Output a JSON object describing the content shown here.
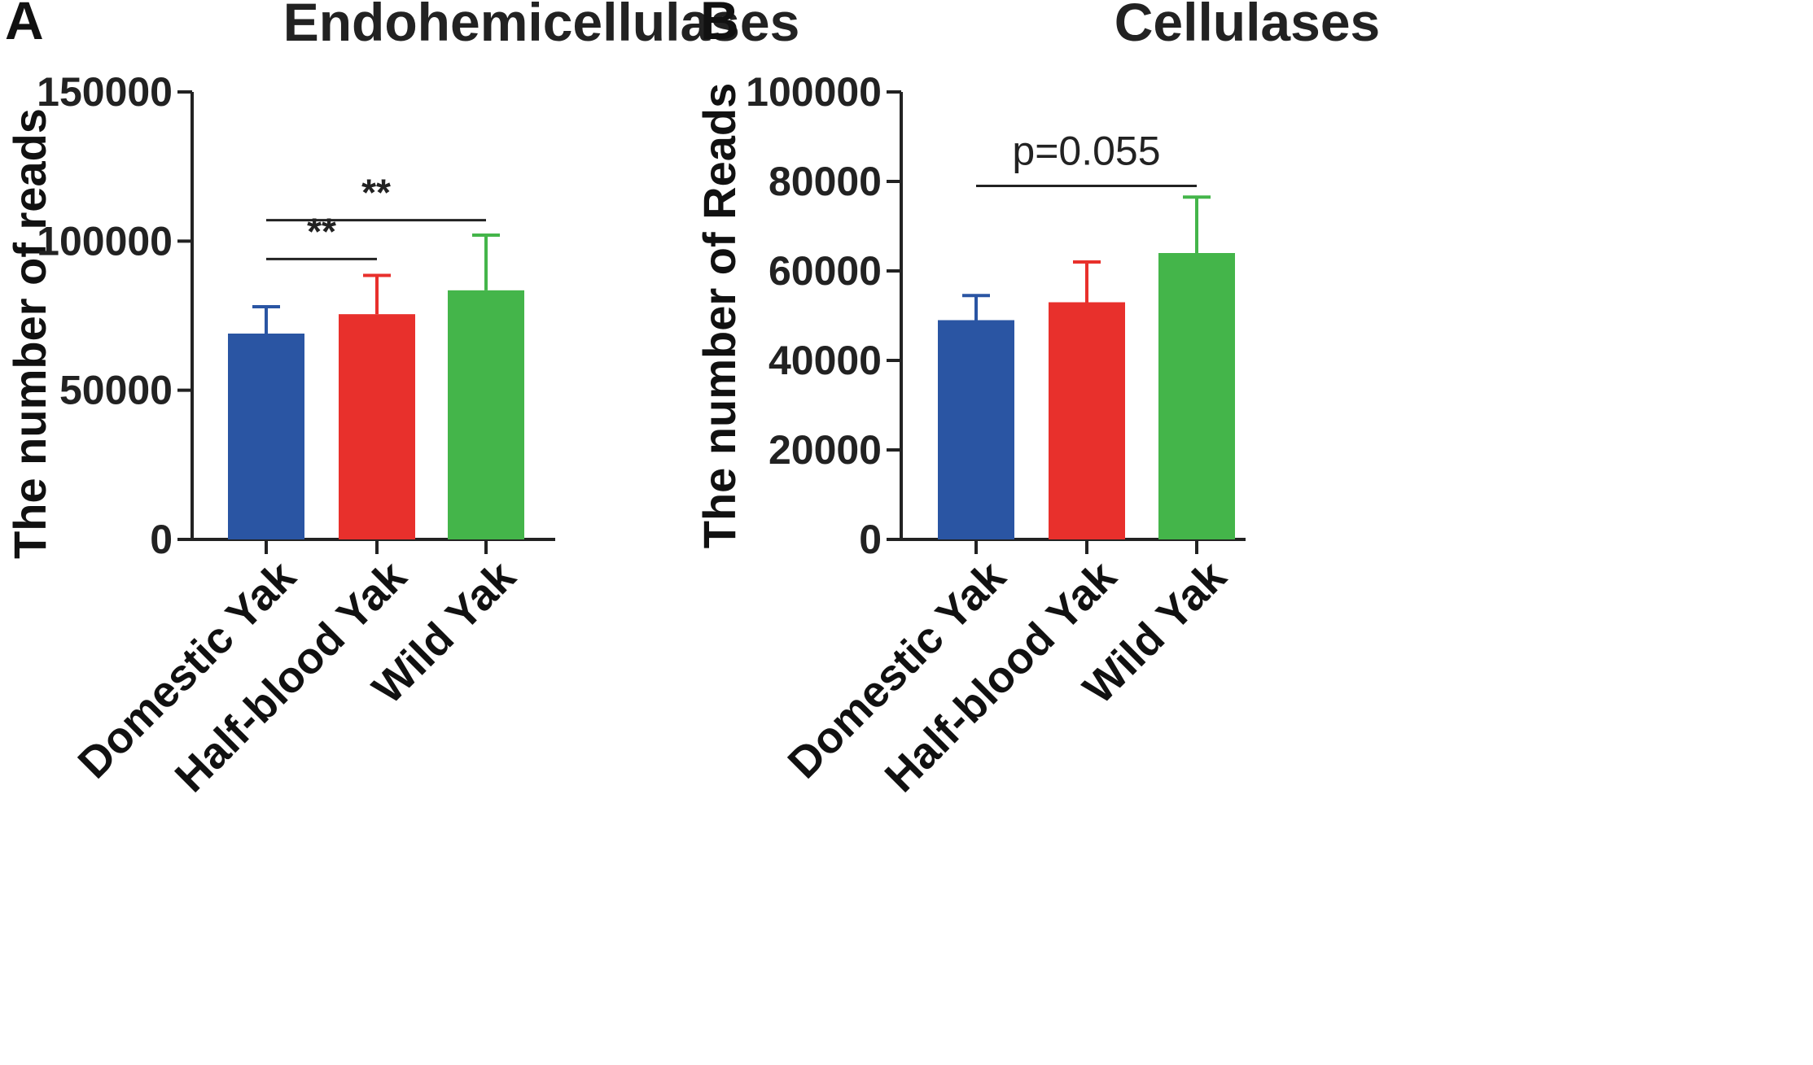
{
  "chart_data": [
    {
      "panel": "A",
      "type": "bar",
      "title": "Endohemicellulases",
      "ylabel": "The number of reads",
      "xlabel": "",
      "categories": [
        "Domestic Yak",
        "Half-blood Yak",
        "Wild Yak"
      ],
      "values": [
        69000,
        75500,
        83500
      ],
      "errors": [
        9000,
        13000,
        18500
      ],
      "colors": [
        "#2a55a3",
        "#e8302c",
        "#44b54a"
      ],
      "ylim": [
        0,
        150000
      ],
      "yticks": [
        0,
        50000,
        100000,
        150000
      ],
      "ytick_labels": [
        "0",
        "50000",
        "100000",
        "150000"
      ],
      "grid": false,
      "annotations": [
        {
          "from": 0,
          "to": 2,
          "label": "**",
          "level": 107000
        },
        {
          "from": 0,
          "to": 1,
          "label": "**",
          "level": 94000
        }
      ]
    },
    {
      "panel": "B",
      "type": "bar",
      "title": "Cellulases",
      "ylabel": "The number of Reads",
      "xlabel": "",
      "categories": [
        "Domestic Yak",
        "Half-blood Yak",
        "Wild Yak"
      ],
      "values": [
        49000,
        53000,
        64000
      ],
      "errors": [
        5500,
        9000,
        12500
      ],
      "colors": [
        "#2a55a3",
        "#e8302c",
        "#44b54a"
      ],
      "ylim": [
        0,
        100000
      ],
      "yticks": [
        0,
        20000,
        40000,
        60000,
        80000,
        100000
      ],
      "ytick_labels": [
        "0",
        "20000",
        "40000",
        "60000",
        "80000",
        "100000"
      ],
      "grid": false,
      "annotations": [
        {
          "from": 0,
          "to": 2,
          "label": "p=0.055",
          "level": 79000
        }
      ]
    }
  ]
}
